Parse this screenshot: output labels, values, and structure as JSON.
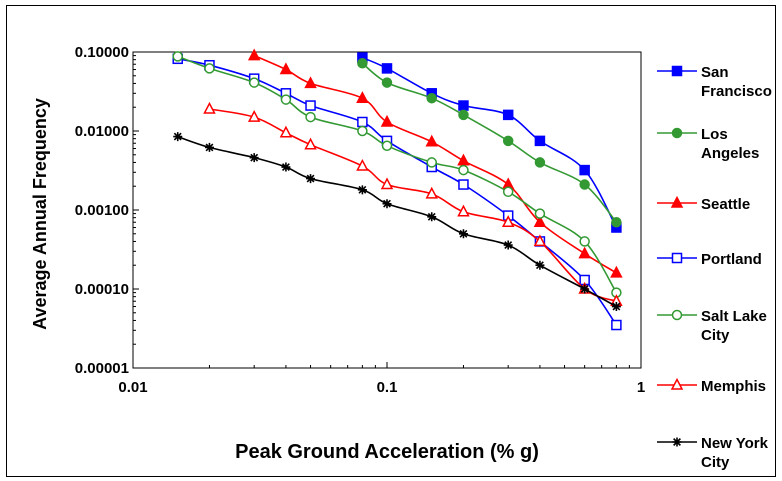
{
  "chart_data": {
    "type": "line",
    "title": "",
    "xlabel": "Peak Ground Acceleration (% g)",
    "ylabel": "Average Annual Frequency",
    "x_scale": "log",
    "y_scale": "log",
    "xlim": [
      0.01,
      1
    ],
    "ylim": [
      1e-05,
      0.1
    ],
    "x_ticks": [
      0.01,
      0.1,
      1
    ],
    "x_tick_labels": [
      "0.01",
      "0.1",
      "1"
    ],
    "y_ticks": [
      1e-05,
      0.0001,
      0.001,
      0.01,
      0.1
    ],
    "y_tick_labels": [
      "0.00001",
      "0.00010",
      "0.00100",
      "0.01000",
      "0.10000"
    ],
    "grid": false,
    "legend_position": "right",
    "series": [
      {
        "name": "San Francisco",
        "color": "#0000ff",
        "marker": "filled-square",
        "x": [
          0.08,
          0.1,
          0.15,
          0.2,
          0.3,
          0.4,
          0.6,
          0.8
        ],
        "y": [
          0.085,
          0.062,
          0.03,
          0.021,
          0.016,
          0.0075,
          0.0032,
          0.0006
        ]
      },
      {
        "name": "Los Angeles",
        "color": "#339933",
        "marker": "filled-circle",
        "x": [
          0.08,
          0.1,
          0.15,
          0.2,
          0.3,
          0.4,
          0.6,
          0.8
        ],
        "y": [
          0.072,
          0.041,
          0.026,
          0.016,
          0.0075,
          0.004,
          0.0021,
          0.0007
        ]
      },
      {
        "name": "Seattle",
        "color": "#ff0000",
        "marker": "filled-triangle",
        "x": [
          0.03,
          0.04,
          0.05,
          0.08,
          0.1,
          0.15,
          0.2,
          0.3,
          0.4,
          0.6,
          0.8
        ],
        "y": [
          0.09,
          0.06,
          0.04,
          0.026,
          0.013,
          0.0073,
          0.0042,
          0.0021,
          0.0007,
          0.00028,
          0.00016
        ]
      },
      {
        "name": "Portland",
        "color": "#0000ff",
        "marker": "open-square",
        "x": [
          0.015,
          0.02,
          0.03,
          0.04,
          0.05,
          0.08,
          0.1,
          0.15,
          0.2,
          0.3,
          0.4,
          0.6,
          0.8
        ],
        "y": [
          0.082,
          0.068,
          0.046,
          0.03,
          0.021,
          0.013,
          0.0075,
          0.0035,
          0.0021,
          0.00085,
          0.0004,
          0.00013,
          3.5e-05
        ]
      },
      {
        "name": "Salt Lake City",
        "color": "#339933",
        "marker": "open-circle",
        "x": [
          0.015,
          0.02,
          0.03,
          0.04,
          0.05,
          0.08,
          0.1,
          0.15,
          0.2,
          0.3,
          0.4,
          0.6,
          0.8
        ],
        "y": [
          0.088,
          0.062,
          0.041,
          0.025,
          0.015,
          0.01,
          0.0065,
          0.004,
          0.0032,
          0.0017,
          0.0009,
          0.0004,
          9e-05
        ]
      },
      {
        "name": "Memphis",
        "color": "#ff0000",
        "marker": "open-triangle",
        "x": [
          0.02,
          0.03,
          0.04,
          0.05,
          0.08,
          0.1,
          0.15,
          0.2,
          0.3,
          0.4,
          0.6,
          0.8
        ],
        "y": [
          0.019,
          0.015,
          0.0095,
          0.0067,
          0.0036,
          0.0021,
          0.0016,
          0.00095,
          0.0007,
          0.0004,
          0.0001,
          7e-05
        ]
      },
      {
        "name": "New York City",
        "color": "#000000",
        "marker": "star",
        "x": [
          0.015,
          0.02,
          0.03,
          0.04,
          0.05,
          0.08,
          0.1,
          0.15,
          0.2,
          0.3,
          0.4,
          0.6,
          0.8
        ],
        "y": [
          0.0085,
          0.0062,
          0.0046,
          0.0035,
          0.0025,
          0.0018,
          0.0012,
          0.00082,
          0.0005,
          0.00036,
          0.0002,
          0.0001,
          6e-05
        ]
      }
    ],
    "legend": [
      {
        "series": 0,
        "lines": [
          "San",
          "Francisco"
        ]
      },
      {
        "series": 1,
        "lines": [
          "Los",
          "Angeles"
        ]
      },
      {
        "series": 2,
        "lines": [
          "Seattle"
        ]
      },
      {
        "series": 3,
        "lines": [
          "Portland"
        ]
      },
      {
        "series": 4,
        "lines": [
          "Salt Lake",
          "City"
        ]
      },
      {
        "series": 5,
        "lines": [
          "Memphis"
        ]
      },
      {
        "series": 6,
        "lines": [
          "New York",
          "City"
        ]
      }
    ]
  }
}
